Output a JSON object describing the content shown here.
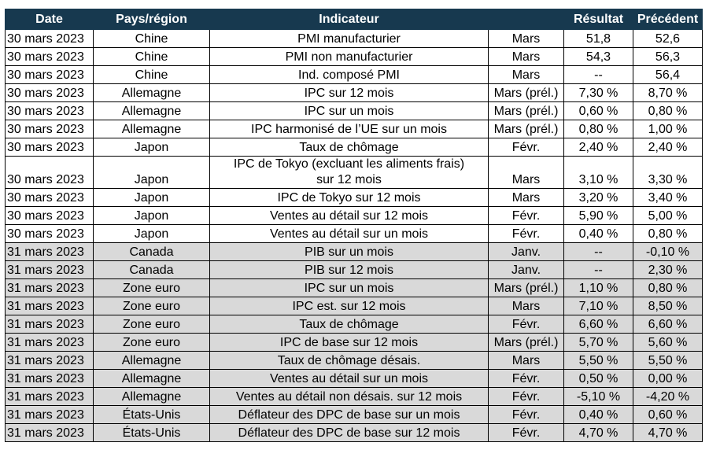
{
  "table": {
    "columns": [
      "Date",
      "Pays/région",
      "Indicateur",
      "Résultat",
      "Précédent"
    ],
    "groups": [
      {
        "shade": "#ffffff",
        "rows": [
          [
            "30 mars 2023",
            "Chine",
            "PMI manufacturier",
            "Mars",
            "51,8",
            "52,6"
          ],
          [
            "30 mars 2023",
            "Chine",
            "PMI non manufacturier",
            "Mars",
            "54,3",
            "56,3"
          ],
          [
            "30 mars 2023",
            "Chine",
            "Ind. composé PMI",
            "Mars",
            "--",
            "56,4"
          ],
          [
            "30 mars 2023",
            "Allemagne",
            "IPC sur 12 mois",
            "Mars (prél.)",
            "7,30 %",
            "8,70 %"
          ],
          [
            "30 mars 2023",
            "Allemagne",
            "IPC sur un mois",
            "Mars (prél.)",
            "0,60 %",
            "0,80 %"
          ],
          [
            "30 mars 2023",
            "Allemagne",
            "IPC harmonisé de l’UE sur un mois",
            "Mars (prél.)",
            "0,80 %",
            "1,00 %"
          ],
          [
            "30 mars 2023",
            "Japon",
            "Taux de chômage",
            "Févr.",
            "2,40 %",
            "2,40 %"
          ],
          [
            "30 mars 2023",
            "Japon",
            "IPC de Tokyo (excluant les aliments frais) sur 12 mois",
            "Mars",
            "3,10 %",
            "3,30 %"
          ],
          [
            "30 mars 2023",
            "Japon",
            "IPC de Tokyo sur 12 mois",
            "Mars",
            "3,20 %",
            "3,40 %"
          ],
          [
            "30 mars 2023",
            "Japon",
            "Ventes au détail sur 12 mois",
            "Févr.",
            "5,90 %",
            "5,00 %"
          ],
          [
            "30 mars 2023",
            "Japon",
            "Ventes au détail sur un mois",
            "Févr.",
            "0,40 %",
            "0,80 %"
          ]
        ]
      },
      {
        "shade": "#d9d9d9",
        "rows": [
          [
            "31 mars 2023",
            "Canada",
            "PIB sur un mois",
            "Janv.",
            "--",
            "-0,10 %"
          ],
          [
            "31 mars 2023",
            "Canada",
            "PIB sur 12 mois",
            "Janv.",
            "--",
            "2,30 %"
          ],
          [
            "31 mars 2023",
            "Zone euro",
            "IPC sur un mois",
            "Mars (prél.)",
            "1,10 %",
            "0,80 %"
          ],
          [
            "31 mars 2023",
            "Zone euro",
            "IPC est. sur 12 mois",
            "Mars",
            "7,10 %",
            "8,50 %"
          ],
          [
            "31 mars 2023",
            "Zone euro",
            "Taux de chômage",
            "Févr.",
            "6,60 %",
            "6,60 %"
          ],
          [
            "31 mars 2023",
            "Zone euro",
            "IPC de base sur 12 mois",
            "Mars (prél.)",
            "5,70 %",
            "5,60 %"
          ],
          [
            "31 mars 2023",
            "Allemagne",
            "Taux de chômage désais.",
            "Mars",
            "5,50 %",
            "5,50 %"
          ],
          [
            "31 mars 2023",
            "Allemagne",
            "Ventes au détail sur un mois",
            "Févr.",
            "0,50 %",
            "0,00 %"
          ],
          [
            "31 mars 2023",
            "Allemagne",
            "Ventes au détail non désais. sur 12 mois",
            "Févr.",
            "-5,10 %",
            "-4,20 %"
          ],
          [
            "31 mars 2023",
            "États-Unis",
            "Déflateur des DPC de base sur un mois",
            "Févr.",
            "0,40 %",
            "0,60 %"
          ],
          [
            "31 mars 2023",
            "États-Unis",
            "Déflateur des DPC de base sur 12 mois",
            "Févr.",
            "4,70 %",
            "4,70 %"
          ]
        ]
      }
    ]
  }
}
